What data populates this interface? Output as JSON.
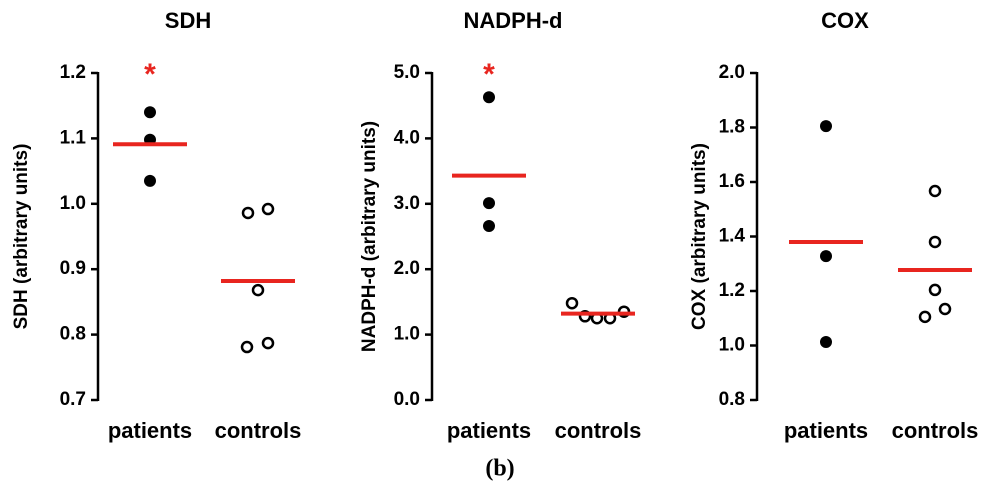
{
  "caption": "(b)",
  "chart_data": [
    {
      "type": "scatter",
      "title": "SDH",
      "ylabel": "SDH (arbitrary units)",
      "categories": [
        "patients",
        "controls"
      ],
      "values": [
        [
          1.14,
          1.098,
          1.035
        ],
        [
          0.986,
          0.992,
          0.868,
          0.781,
          0.787
        ]
      ],
      "means": [
        1.091,
        0.882
      ],
      "significance": [
        "*",
        null
      ],
      "markers": [
        "filled",
        "open"
      ],
      "color": "#000000",
      "mean_color": "#e8251f",
      "ylim": [
        0.7,
        1.2
      ],
      "yticks": [
        0.7,
        0.8,
        0.9,
        {
          "value": 1,
          "label": "1.0"
        },
        1.1,
        1.2
      ]
    },
    {
      "type": "scatter",
      "title": "NADPH-d",
      "ylabel": "NADPH-d (arbitrary units)",
      "categories": [
        "patients",
        "controls"
      ],
      "values": [
        [
          4.63,
          3.01,
          2.66
        ],
        [
          1.48,
          1.28,
          1.25,
          1.25,
          1.35
        ]
      ],
      "means": [
        3.43,
        1.32
      ],
      "significance": [
        "*",
        null
      ],
      "markers": [
        "filled",
        "open"
      ],
      "color": "#000000",
      "mean_color": "#e8251f",
      "ylim": [
        0,
        5
      ],
      "yticks": [
        {
          "value": 0,
          "label": "0.0"
        },
        {
          "value": 1,
          "label": "1.0"
        },
        {
          "value": 2,
          "label": "2.0"
        },
        {
          "value": 3,
          "label": "3.0"
        },
        {
          "value": 4,
          "label": "4.0"
        },
        {
          "value": 5,
          "label": "5.0"
        }
      ]
    },
    {
      "type": "scatter",
      "title": "COX",
      "ylabel": "COX (arbitrary units)",
      "categories": [
        "patients",
        "controls"
      ],
      "values": [
        [
          1.805,
          1.328,
          1.013
        ],
        [
          1.567,
          1.38,
          1.204,
          1.105,
          1.134
        ]
      ],
      "means": [
        1.38,
        1.277
      ],
      "significance": [
        null,
        null
      ],
      "markers": [
        "filled",
        "open"
      ],
      "color": "#000000",
      "mean_color": "#e8251f",
      "ylim": [
        0.8,
        2
      ],
      "yticks": [
        0.8,
        {
          "value": 1,
          "label": "1.0"
        },
        1.2,
        1.4,
        1.6,
        1.8,
        {
          "value": 2,
          "label": "2.0"
        }
      ]
    }
  ]
}
